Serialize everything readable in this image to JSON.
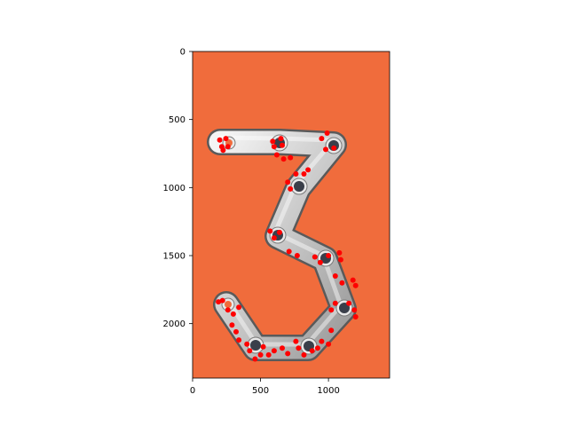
{
  "chart_data": {
    "type": "scatter",
    "title": "",
    "xlabel": "",
    "ylabel": "",
    "xlim": [
      0,
      1450
    ],
    "ylim": [
      2400,
      0
    ],
    "y_inverted": true,
    "grid": false,
    "legend": "none",
    "background_image": {
      "content": "bicycle-chain-shaped-like-digit-3-on-orange-background",
      "extent_x": [
        0,
        1450
      ],
      "extent_y": [
        2400,
        0
      ],
      "background_color": "#f06c3c"
    },
    "xticks": [
      0,
      500,
      1000
    ],
    "xtick_labels": [
      "0",
      "500",
      "1000"
    ],
    "yticks": [
      0,
      500,
      1000,
      1500,
      2000
    ],
    "ytick_labels": [
      "0",
      "500",
      "1000",
      "1500",
      "2000"
    ],
    "series": [
      {
        "marker_color": "#ff0000",
        "points": [
          {
            "x": 200,
            "y": 650
          },
          {
            "x": 215,
            "y": 700
          },
          {
            "x": 245,
            "y": 640
          },
          {
            "x": 260,
            "y": 700
          },
          {
            "x": 225,
            "y": 725
          },
          {
            "x": 590,
            "y": 660
          },
          {
            "x": 600,
            "y": 700
          },
          {
            "x": 660,
            "y": 690
          },
          {
            "x": 650,
            "y": 640
          },
          {
            "x": 620,
            "y": 760
          },
          {
            "x": 670,
            "y": 790
          },
          {
            "x": 720,
            "y": 780
          },
          {
            "x": 950,
            "y": 640
          },
          {
            "x": 980,
            "y": 720
          },
          {
            "x": 1040,
            "y": 710
          },
          {
            "x": 990,
            "y": 600
          },
          {
            "x": 700,
            "y": 960
          },
          {
            "x": 720,
            "y": 1010
          },
          {
            "x": 760,
            "y": 900
          },
          {
            "x": 820,
            "y": 900
          },
          {
            "x": 850,
            "y": 870
          },
          {
            "x": 570,
            "y": 1320
          },
          {
            "x": 600,
            "y": 1370
          },
          {
            "x": 640,
            "y": 1330
          },
          {
            "x": 710,
            "y": 1470
          },
          {
            "x": 770,
            "y": 1500
          },
          {
            "x": 900,
            "y": 1510
          },
          {
            "x": 940,
            "y": 1550
          },
          {
            "x": 1000,
            "y": 1500
          },
          {
            "x": 1080,
            "y": 1480
          },
          {
            "x": 1090,
            "y": 1530
          },
          {
            "x": 1050,
            "y": 1650
          },
          {
            "x": 1100,
            "y": 1700
          },
          {
            "x": 1180,
            "y": 1680
          },
          {
            "x": 1200,
            "y": 1720
          },
          {
            "x": 1020,
            "y": 1900
          },
          {
            "x": 1050,
            "y": 1850
          },
          {
            "x": 1150,
            "y": 1850
          },
          {
            "x": 1190,
            "y": 1900
          },
          {
            "x": 1200,
            "y": 1950
          },
          {
            "x": 1020,
            "y": 2050
          },
          {
            "x": 1000,
            "y": 2150
          },
          {
            "x": 190,
            "y": 1840
          },
          {
            "x": 220,
            "y": 1830
          },
          {
            "x": 260,
            "y": 1900
          },
          {
            "x": 300,
            "y": 1930
          },
          {
            "x": 340,
            "y": 1880
          },
          {
            "x": 290,
            "y": 2010
          },
          {
            "x": 320,
            "y": 2060
          },
          {
            "x": 340,
            "y": 2120
          },
          {
            "x": 400,
            "y": 2150
          },
          {
            "x": 420,
            "y": 2200
          },
          {
            "x": 460,
            "y": 2260
          },
          {
            "x": 500,
            "y": 2230
          },
          {
            "x": 520,
            "y": 2170
          },
          {
            "x": 560,
            "y": 2230
          },
          {
            "x": 600,
            "y": 2200
          },
          {
            "x": 760,
            "y": 2130
          },
          {
            "x": 780,
            "y": 2180
          },
          {
            "x": 820,
            "y": 2230
          },
          {
            "x": 880,
            "y": 2200
          },
          {
            "x": 920,
            "y": 2180
          },
          {
            "x": 950,
            "y": 2130
          },
          {
            "x": 700,
            "y": 2220
          },
          {
            "x": 660,
            "y": 2180
          }
        ]
      }
    ]
  }
}
